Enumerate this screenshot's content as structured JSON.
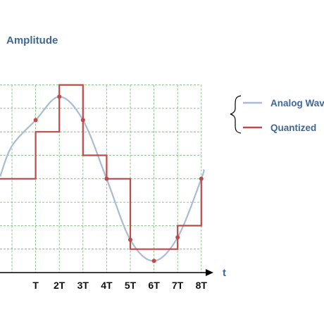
{
  "chart_data": {
    "type": "line",
    "ylabel": "Amplitude",
    "xlabel": "t",
    "x_ticks": [
      "T",
      "2T",
      "3T",
      "4T",
      "5T",
      "6T",
      "7T",
      "8T"
    ],
    "grid": true,
    "legend_placement": "right",
    "series": [
      {
        "name": "Analog Wave",
        "kind": "smooth curve",
        "color": "#a9bcd6"
      },
      {
        "name": "Quantized",
        "kind": "step",
        "color": "#bd4b4b",
        "x": [
          0,
          1,
          2,
          3,
          4,
          5,
          6,
          7,
          8
        ],
        "levels": [
          4,
          6,
          8,
          5,
          4,
          1,
          1,
          2,
          4
        ],
        "sample_points": [
          {
            "x": 1,
            "y": 6.5
          },
          {
            "x": 2,
            "y": 7.5
          },
          {
            "x": 3,
            "y": 6.5
          },
          {
            "x": 4,
            "y": 4
          },
          {
            "x": 5,
            "y": 1.4
          },
          {
            "x": 6,
            "y": 0.5
          },
          {
            "x": 7,
            "y": 1.5
          },
          {
            "x": 8,
            "y": 4
          }
        ]
      }
    ],
    "ylim": [
      -0.2,
      8.2
    ],
    "xlim": [
      -0.55,
      8.2
    ]
  }
}
